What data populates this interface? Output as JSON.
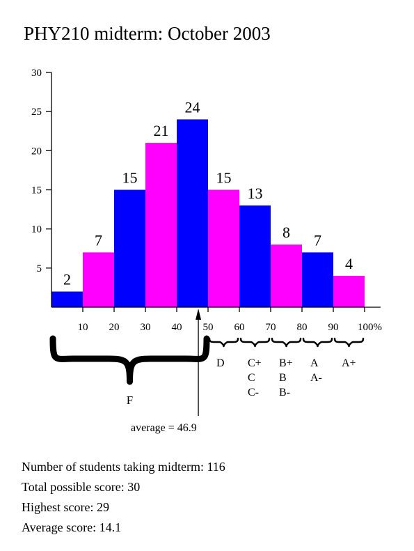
{
  "chart_data": {
    "type": "bar",
    "title": "PHY210 midterm: October 2003",
    "bins": [
      "0-10",
      "10-20",
      "20-30",
      "30-40",
      "40-50",
      "50-60",
      "60-70",
      "70-80",
      "80-90",
      "90-100"
    ],
    "values": [
      2,
      7,
      15,
      21,
      24,
      15,
      13,
      8,
      7,
      4
    ],
    "colors": [
      "#0000ff",
      "#ff00ff",
      "#0000ff",
      "#ff00ff",
      "#0000ff",
      "#ff00ff",
      "#0000ff",
      "#ff00ff",
      "#0000ff",
      "#ff00ff"
    ],
    "xlim": [
      0,
      100
    ],
    "ylim": [
      0,
      30
    ],
    "y_ticks": [
      "5",
      "10",
      "15",
      "20",
      "25",
      "30"
    ],
    "x_ticks": [
      "10",
      "20",
      "30",
      "40",
      "50",
      "60",
      "70",
      "80",
      "90",
      "100%"
    ],
    "grade_ranges": [
      {
        "from": 0,
        "to": 50,
        "grades": [
          "F"
        ]
      },
      {
        "from": 50,
        "to": 60,
        "grades": [
          "D"
        ]
      },
      {
        "from": 60,
        "to": 70,
        "grades": [
          "C+",
          "C",
          "C-"
        ]
      },
      {
        "from": 70,
        "to": 80,
        "grades": [
          "B+",
          "B",
          "B-"
        ]
      },
      {
        "from": 80,
        "to": 90,
        "grades": [
          "A",
          "A-"
        ]
      },
      {
        "from": 90,
        "to": 100,
        "grades": [
          "A+"
        ]
      }
    ],
    "average": {
      "value": 46.9,
      "label": "average = 46.9"
    },
    "grid": false
  },
  "stats": {
    "students": "Number of students taking midterm: 116",
    "possible": "Total possible score: 30",
    "highest": "Highest score: 29",
    "average": "Average score: 14.1"
  }
}
